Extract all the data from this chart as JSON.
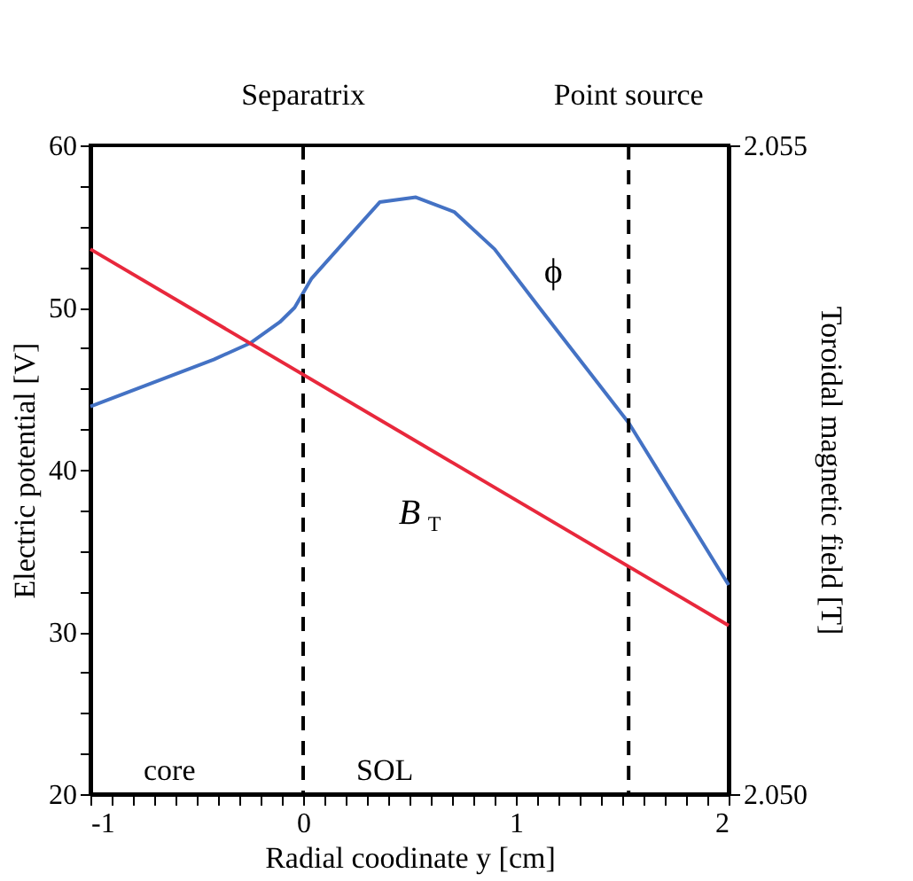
{
  "chart_data": {
    "type": "line",
    "xlabel": "Radial coodinate y [cm]",
    "ylabel": "Electric potential [V]",
    "y2label": "Toroidal magnetic field [T]",
    "xlim": [
      -1,
      2
    ],
    "xticks": [
      -1,
      {
        "value": -0.9,
        "label": null
      },
      {
        "value": -0.8,
        "label": null
      },
      {
        "value": -0.7,
        "label": null
      },
      {
        "value": -0.6,
        "label": null
      },
      {
        "value": -0.5,
        "label": null
      },
      {
        "value": -0.4,
        "label": null
      },
      {
        "value": -0.3,
        "label": null
      },
      {
        "value": -0.2,
        "label": null
      },
      {
        "value": -0.1,
        "label": null
      },
      0,
      {
        "value": 0.1,
        "label": null
      },
      {
        "value": 0.2,
        "label": null
      },
      {
        "value": 0.3,
        "label": null
      },
      {
        "value": 0.4,
        "label": null
      },
      {
        "value": 0.5,
        "label": null
      },
      {
        "value": 0.6,
        "label": null
      },
      {
        "value": 0.7,
        "label": null
      },
      {
        "value": 0.8,
        "label": null
      },
      {
        "value": 0.9,
        "label": null
      },
      1,
      {
        "value": 1.1,
        "label": null
      },
      {
        "value": 1.2,
        "label": null
      },
      {
        "value": 1.3,
        "label": null
      },
      {
        "value": 1.4,
        "label": null
      },
      {
        "value": 1.5,
        "label": null
      },
      {
        "value": 1.6,
        "label": null
      },
      {
        "value": 1.7,
        "label": null
      },
      {
        "value": 1.8,
        "label": null
      },
      {
        "value": 1.9,
        "label": null
      },
      2
    ],
    "ylim": [
      20,
      60
    ],
    "yticks": [
      20,
      {
        "value": 22.5,
        "label": null
      },
      {
        "value": 25,
        "label": null
      },
      {
        "value": 27.5,
        "label": null
      },
      30,
      {
        "value": 32.5,
        "label": null
      },
      {
        "value": 35,
        "label": null
      },
      {
        "value": 37.5,
        "label": null
      },
      40,
      {
        "value": 42.5,
        "label": null
      },
      {
        "value": 45,
        "label": null
      },
      {
        "value": 47.5,
        "label": null
      },
      50,
      {
        "value": 52.5,
        "label": null
      },
      {
        "value": 55,
        "label": null
      },
      {
        "value": 57.5,
        "label": null
      },
      60
    ],
    "y2lim": [
      2.05,
      2.055
    ],
    "y2ticks": [
      {
        "value": 2.05,
        "label": "2.050"
      },
      2.055
    ],
    "series": [
      {
        "name": "ϕ",
        "color": "#4472c4",
        "x": [
          -1,
          -0.42,
          -0.25,
          -0.11,
          -0.04,
          0.04,
          0.36,
          0.53,
          0.71,
          0.9,
          1.11,
          1.53,
          2
        ],
        "values": [
          43.9,
          46.8,
          47.8,
          49.1,
          50.0,
          51.8,
          56.5,
          56.8,
          55.9,
          53.6,
          50.0,
          42.9,
          32.9
        ]
      },
      {
        "name": "B$_{T}$",
        "color": "#e8283c",
        "axis": "y2",
        "x": [
          -1,
          2
        ],
        "values": [
          2.0542,
          2.0513
        ]
      }
    ],
    "ref_lines": [
      {
        "axis": "x",
        "value": 0,
        "label": "Separatrix",
        "line_style": "dashed",
        "color": "#000000"
      },
      {
        "axis": "x",
        "value": 1.53,
        "label": "Point source",
        "line_style": "dashed",
        "color": "#000000"
      }
    ],
    "annotations": [
      "core",
      "SOL"
    ],
    "grid": false
  }
}
